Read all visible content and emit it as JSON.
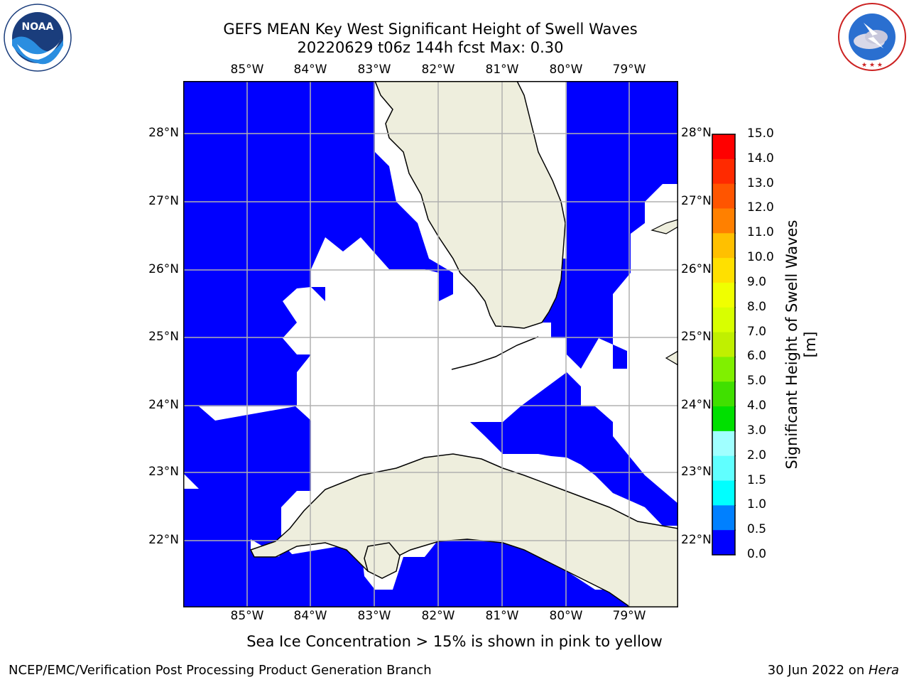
{
  "header": {
    "title_line1": "GEFS MEAN Key West Significant Height of Swell Waves",
    "title_line2": "20220629 t06z 144h fcst   Max: 0.30"
  },
  "logos": {
    "left": {
      "name": "noaa-logo",
      "text": "NOAA",
      "ring_text": "NATIONAL OCEANIC AND ATMOSPHERIC ADMINISTRATION · U.S. DEPARTMENT OF COMMERCE"
    },
    "right": {
      "name": "nws-logo",
      "ring_text": "NATIONAL WEATHER SERVICE"
    }
  },
  "map": {
    "lon_labels": [
      "85°W",
      "84°W",
      "83°W",
      "82°W",
      "81°W",
      "80°W",
      "79°W"
    ],
    "lat_labels": [
      "28°N",
      "27°N",
      "26°N",
      "25°N",
      "24°N",
      "23°N",
      "22°N"
    ],
    "lon_range": [
      -86.0,
      -78.3
    ],
    "lat_range": [
      21.0,
      28.8
    ],
    "colors": {
      "swell_low": "#0000ff",
      "land": "#eeeedd",
      "gridline": "#b0b0b0",
      "no_data": "#ffffff"
    }
  },
  "colorbar": {
    "title": "Significant Height of Swell Waves [m]",
    "ticks": [
      "15.0",
      "14.0",
      "13.0",
      "12.0",
      "11.0",
      "10.0",
      "9.0",
      "8.0",
      "7.0",
      "6.0",
      "5.0",
      "4.0",
      "3.0",
      "2.0",
      "1.5",
      "1.0",
      "0.5",
      "0.0"
    ],
    "colors": [
      "#ff0000",
      "#ff2a00",
      "#ff5500",
      "#ff8000",
      "#ffa000",
      "#ffc000",
      "#ffe000",
      "#f0ff00",
      "#d8ff00",
      "#c0f000",
      "#80f000",
      "#40e000",
      "#00e000",
      "#40ff80",
      "#a0ffff",
      "#60ffff",
      "#00ffff",
      "#0080ff",
      "#0000ff"
    ]
  },
  "chart_data": {
    "type": "heatmap",
    "variable": "Significant Height of Swell Waves [m]",
    "max_value": 0.3,
    "levels": [
      0.0,
      0.5,
      1.0,
      1.5,
      2.0,
      3.0,
      4.0,
      5.0,
      6.0,
      7.0,
      8.0,
      9.0,
      10.0,
      11.0,
      12.0,
      13.0,
      14.0,
      15.0
    ]
  },
  "notes": {
    "sea_ice": "Sea Ice Concentration > 15% is shown in pink to yellow"
  },
  "footer": {
    "left": "NCEP/EMC/Verification Post Processing Product Generation Branch",
    "right_date": "30 Jun 2022 on ",
    "right_host": "Hera"
  }
}
